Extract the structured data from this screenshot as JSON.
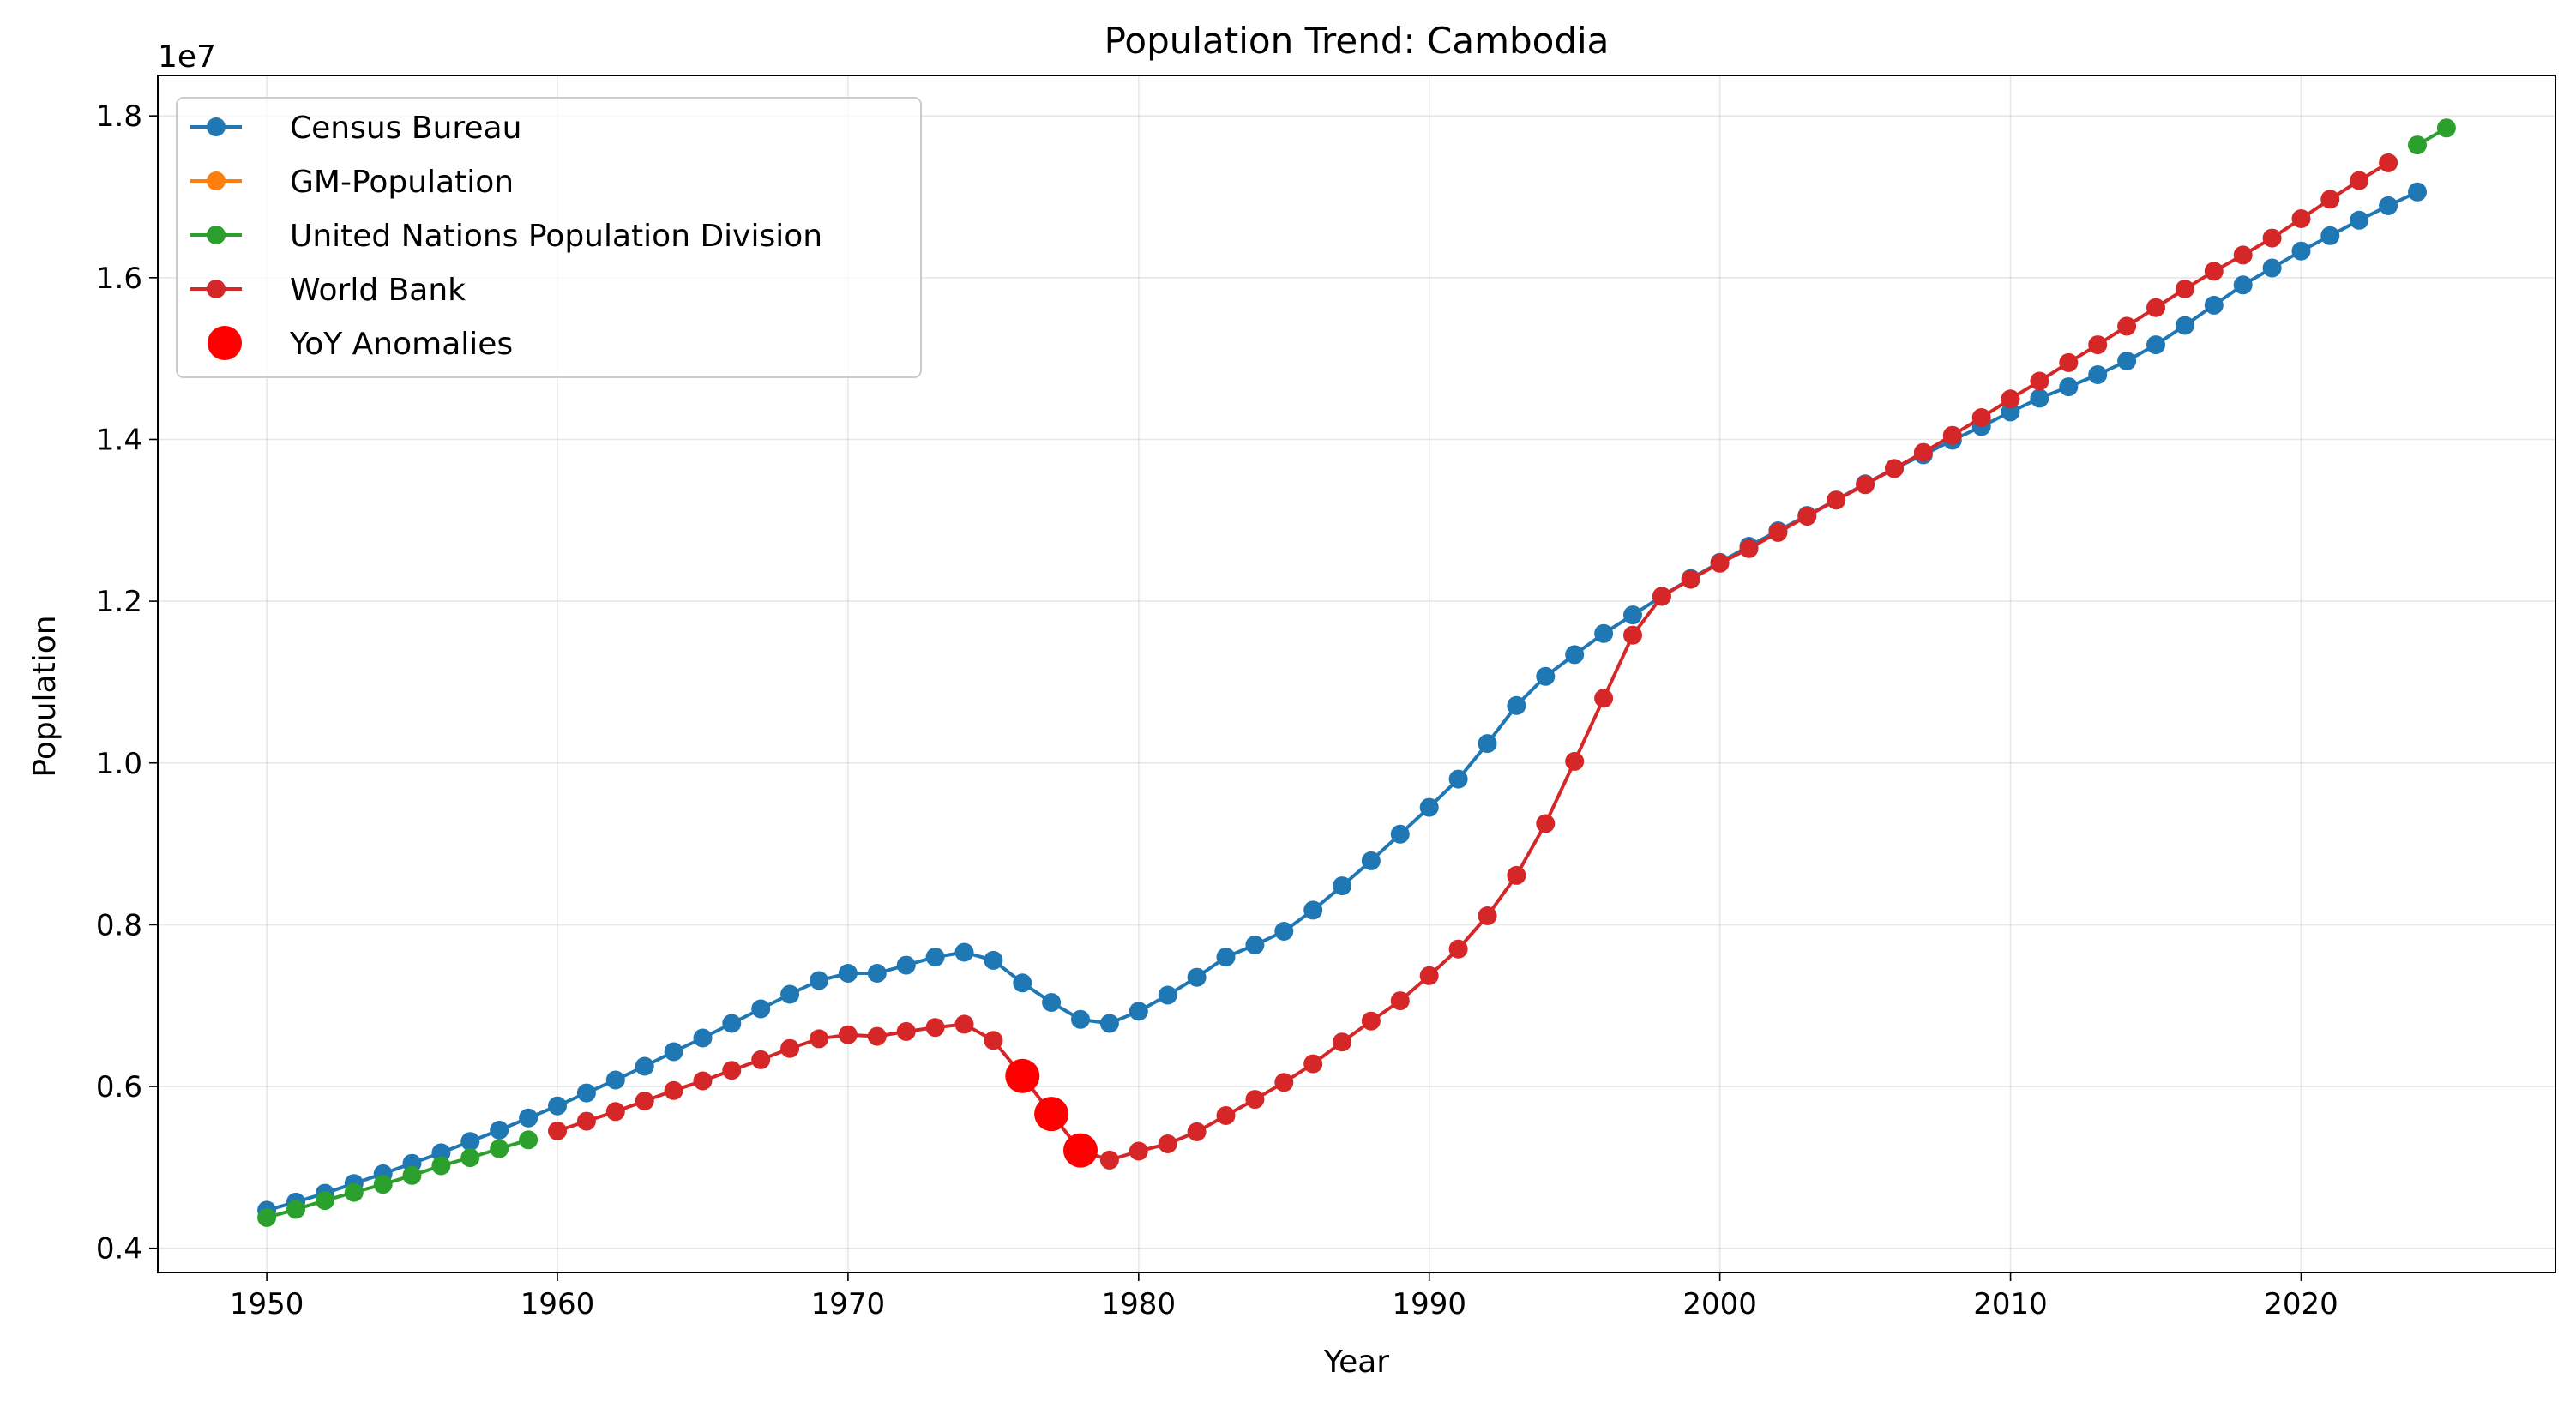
{
  "chart_data": {
    "type": "line",
    "title": "Population Trend: Cambodia",
    "xlabel": "Year",
    "ylabel": "Population",
    "y_offset_label": "1e7",
    "xlim": [
      1946.25,
      2028.75
    ],
    "ylim": [
      3.7,
      18.5
    ],
    "x_ticks": [
      1950,
      1960,
      1970,
      1980,
      1990,
      2000,
      2010,
      2020
    ],
    "x_tick_labels": [
      "1950",
      "1960",
      "1970",
      "1980",
      "1990",
      "2000",
      "2010",
      "2020"
    ],
    "y_ticks": [
      4,
      6,
      8,
      10,
      12,
      14,
      16,
      18
    ],
    "y_tick_labels": [
      "0.4",
      "0.6",
      "0.8",
      "1.0",
      "1.2",
      "1.4",
      "1.6",
      "1.8"
    ],
    "grid": true,
    "legend_position": "top-left",
    "series": [
      {
        "name": "Census Bureau",
        "color": "#1f77b4",
        "x": [
          1950,
          1951,
          1952,
          1953,
          1954,
          1955,
          1956,
          1957,
          1958,
          1959,
          1960,
          1961,
          1962,
          1963,
          1964,
          1965,
          1966,
          1967,
          1968,
          1969,
          1970,
          1971,
          1972,
          1973,
          1974,
          1975,
          1976,
          1977,
          1978,
          1979,
          1980,
          1981,
          1982,
          1983,
          1984,
          1985,
          1986,
          1987,
          1988,
          1989,
          1990,
          1991,
          1992,
          1993,
          1994,
          1995,
          1996,
          1997,
          1998,
          1999,
          2000,
          2001,
          2002,
          2003,
          2004,
          2005,
          2006,
          2007,
          2008,
          2009,
          2010,
          2011,
          2012,
          2013,
          2014,
          2015,
          2016,
          2017,
          2018,
          2019,
          2020,
          2021,
          2022,
          2023,
          2024
        ],
        "values": [
          4.47,
          4.57,
          4.68,
          4.8,
          4.92,
          5.05,
          5.18,
          5.32,
          5.46,
          5.61,
          5.76,
          5.92,
          6.08,
          6.25,
          6.43,
          6.6,
          6.78,
          6.96,
          7.14,
          7.31,
          7.4,
          7.4,
          7.5,
          7.6,
          7.66,
          7.56,
          7.28,
          7.04,
          6.83,
          6.78,
          6.93,
          7.13,
          7.35,
          7.6,
          7.75,
          7.92,
          8.18,
          8.48,
          8.79,
          9.12,
          9.45,
          9.8,
          10.24,
          10.71,
          11.07,
          11.34,
          11.6,
          11.83,
          12.06,
          12.28,
          12.48,
          12.68,
          12.87,
          13.06,
          13.25,
          13.45,
          13.64,
          13.81,
          13.99,
          14.16,
          14.34,
          14.51,
          14.65,
          14.8,
          14.97,
          15.17,
          15.41,
          15.66,
          15.91,
          16.12,
          16.33,
          16.52,
          16.71,
          16.89,
          17.06
        ]
      },
      {
        "name": "GM-Population",
        "color": "#ff7f0e",
        "x": [],
        "values": []
      },
      {
        "name": "United Nations Population Division",
        "color": "#2ca02c",
        "x": [
          1950,
          1951,
          1952,
          1953,
          1954,
          1955,
          1956,
          1957,
          1958,
          1959,
          2024,
          2025
        ],
        "values": [
          4.38,
          4.48,
          4.59,
          4.69,
          4.79,
          4.9,
          5.02,
          5.12,
          5.23,
          5.34,
          17.64,
          17.85
        ]
      },
      {
        "name": "World Bank",
        "color": "#d62728",
        "x": [
          1960,
          1961,
          1962,
          1963,
          1964,
          1965,
          1966,
          1967,
          1968,
          1969,
          1970,
          1971,
          1972,
          1973,
          1974,
          1975,
          1976,
          1977,
          1978,
          1979,
          1980,
          1981,
          1982,
          1983,
          1984,
          1985,
          1986,
          1987,
          1988,
          1989,
          1990,
          1991,
          1992,
          1993,
          1994,
          1995,
          1996,
          1997,
          1998,
          1999,
          2000,
          2001,
          2002,
          2003,
          2004,
          2005,
          2006,
          2007,
          2008,
          2009,
          2010,
          2011,
          2012,
          2013,
          2014,
          2015,
          2016,
          2017,
          2018,
          2019,
          2020,
          2021,
          2022,
          2023
        ],
        "values": [
          5.45,
          5.57,
          5.69,
          5.82,
          5.95,
          6.07,
          6.2,
          6.33,
          6.47,
          6.59,
          6.64,
          6.62,
          6.68,
          6.73,
          6.77,
          6.57,
          6.13,
          5.66,
          5.21,
          5.09,
          5.2,
          5.29,
          5.44,
          5.64,
          5.84,
          6.05,
          6.28,
          6.55,
          6.81,
          7.06,
          7.37,
          7.7,
          8.11,
          8.61,
          9.25,
          10.02,
          10.8,
          11.58,
          12.06,
          12.27,
          12.47,
          12.65,
          12.85,
          13.05,
          13.25,
          13.44,
          13.64,
          13.84,
          14.05,
          14.27,
          14.5,
          14.72,
          14.95,
          15.17,
          15.4,
          15.63,
          15.86,
          16.08,
          16.28,
          16.49,
          16.73,
          16.97,
          17.2,
          17.42
        ]
      }
    ],
    "anomalies": {
      "name": "YoY Anomalies",
      "color": "#ff0000",
      "x": [
        1976,
        1977,
        1978
      ],
      "values": [
        6.13,
        5.66,
        5.21
      ]
    }
  }
}
